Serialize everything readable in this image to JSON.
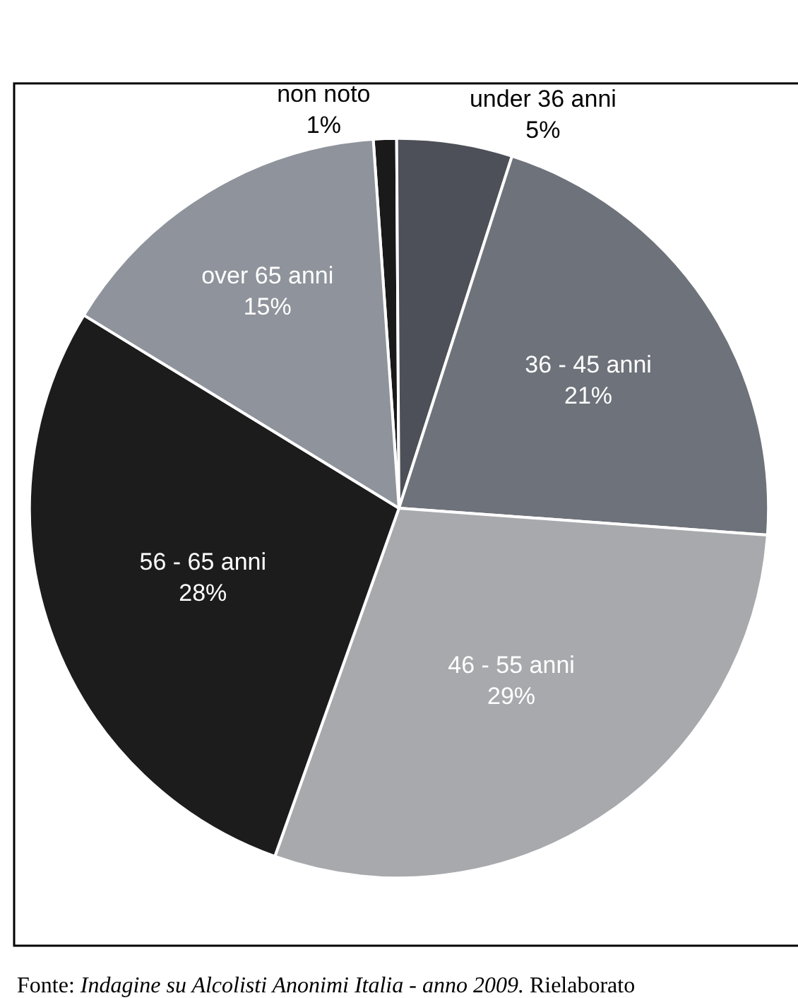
{
  "chart_data": {
    "type": "pie",
    "categories": [
      "non noto",
      "under 36 anni",
      "36 - 45 anni",
      "46 - 55 anni",
      "56 - 65 anni",
      "over 65 anni"
    ],
    "values": [
      1,
      5,
      21,
      29,
      28,
      15
    ],
    "value_labels": [
      "1%",
      "5%",
      "21%",
      "29%",
      "28%",
      "15%"
    ],
    "colors": [
      "#1a1a1a",
      "#4d5058",
      "#6e727a",
      "#a7a9ad",
      "#1c1c1c",
      "#8f939b"
    ],
    "legend": false,
    "annotations": [
      "Fonte: Indagine su Alcolisti Anonimi Italia - anno 2009. Rielaborato"
    ]
  }
}
